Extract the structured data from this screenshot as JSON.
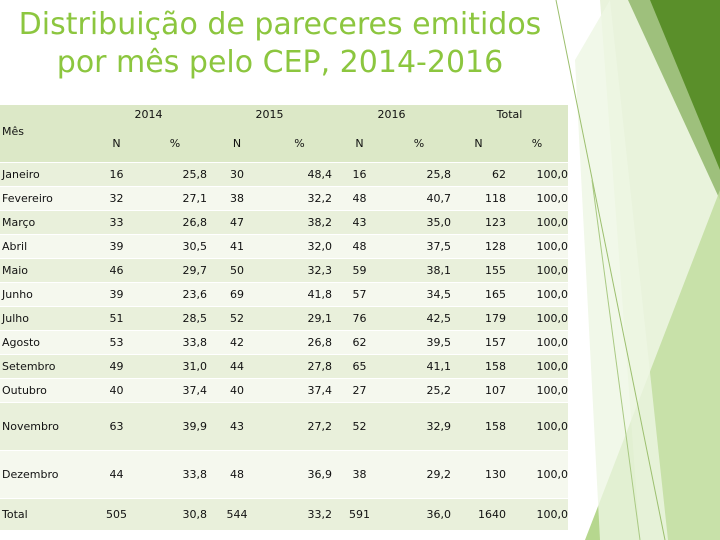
{
  "title": [
    "Distribuição de pareceres emitidos",
    "por mês pelo CEP, 2014-2016"
  ],
  "accent_color": "#8cc63f",
  "table": {
    "month_header": "Mês",
    "years": [
      "2014",
      "2015",
      "2016",
      "Total"
    ],
    "sub_headers": [
      "N",
      "%",
      "N",
      "%",
      "N",
      "%",
      "N",
      "%"
    ],
    "rows": [
      [
        "Janeiro",
        "16",
        "25,8",
        "30",
        "48,4",
        "16",
        "25,8",
        "62",
        "100,0"
      ],
      [
        "Fevereiro",
        "32",
        "27,1",
        "38",
        "32,2",
        "48",
        "40,7",
        "118",
        "100,0"
      ],
      [
        "Março",
        "33",
        "26,8",
        "47",
        "38,2",
        "43",
        "35,0",
        "123",
        "100,0"
      ],
      [
        "Abril",
        "39",
        "30,5",
        "41",
        "32,0",
        "48",
        "37,5",
        "128",
        "100,0"
      ],
      [
        "Maio",
        "46",
        "29,7",
        "50",
        "32,3",
        "59",
        "38,1",
        "155",
        "100,0"
      ],
      [
        "Junho",
        "39",
        "23,6",
        "69",
        "41,8",
        "57",
        "34,5",
        "165",
        "100,0"
      ],
      [
        "Julho",
        "51",
        "28,5",
        "52",
        "29,1",
        "76",
        "42,5",
        "179",
        "100,0"
      ],
      [
        "Agosto",
        "53",
        "33,8",
        "42",
        "26,8",
        "62",
        "39,5",
        "157",
        "100,0"
      ],
      [
        "Setembro",
        "49",
        "31,0",
        "44",
        "27,8",
        "65",
        "41,1",
        "158",
        "100,0"
      ],
      [
        "Outubro",
        "40",
        "37,4",
        "40",
        "37,4",
        "27",
        "25,2",
        "107",
        "100,0"
      ],
      [
        "Novembro",
        "63",
        "39,9",
        "43",
        "27,2",
        "52",
        "32,9",
        "158",
        "100,0"
      ],
      [
        "Dezembro",
        "44",
        "33,8",
        "48",
        "36,9",
        "38",
        "29,2",
        "130",
        "100,0"
      ],
      [
        "Total",
        "505",
        "30,8",
        "544",
        "33,2",
        "591",
        "36,0",
        "1640",
        "100,0"
      ]
    ]
  }
}
